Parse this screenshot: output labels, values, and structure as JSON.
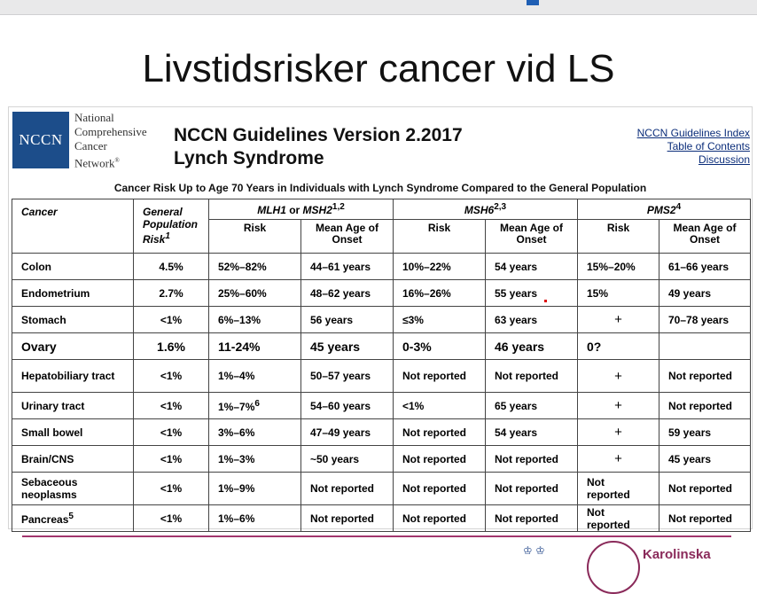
{
  "slide": {
    "title": "Livstidsrisker cancer vid LS",
    "footer_org": "Karolinska"
  },
  "header": {
    "logo_text": "NCCN",
    "org_name_lines": [
      "National",
      "Comprehensive",
      "Cancer",
      "Network"
    ],
    "org_trademark": "®",
    "guide_title_line1": "NCCN Guidelines Version 2.2017",
    "guide_title_line2": "Lynch Syndrome",
    "links": [
      "NCCN Guidelines Index",
      "Table of Contents",
      "Discussion"
    ]
  },
  "table": {
    "caption": "Cancer Risk Up to Age 70 Years in Individuals with Lynch Syndrome Compared to the General Population",
    "col_cancer": "Cancer",
    "col_general_line1": "General",
    "col_general_line2": "Population",
    "col_general_line3": "Risk",
    "col_general_sup": "1",
    "groups": [
      {
        "name_a": "MLH1",
        "joiner": " or ",
        "name_b": "MSH2",
        "sup": "1,2"
      },
      {
        "name_a": "MSH6",
        "joiner": "",
        "name_b": "",
        "sup": "2,3"
      },
      {
        "name_a": "PMS2",
        "joiner": "",
        "name_b": "",
        "sup": "4"
      }
    ],
    "sub_risk": "Risk",
    "sub_onset_line1": "Mean Age of",
    "sub_onset_line2": "Onset",
    "rows": [
      {
        "cancer": "Colon",
        "cancer_sup": "",
        "general": "4.5%",
        "mlh1_risk": "52%–82%",
        "mlh1_risk_sup": "",
        "mlh1_age": "44–61 years",
        "msh6_risk": "10%–22%",
        "msh6_age": "54 years",
        "pms2_risk": "15%–20%",
        "pms2_age": "61–66 years"
      },
      {
        "cancer": "Endometrium",
        "cancer_sup": "",
        "general": "2.7%",
        "mlh1_risk": "25%–60%",
        "mlh1_risk_sup": "",
        "mlh1_age": "48–62 years",
        "msh6_risk": "16%–26%",
        "msh6_age": "55 years",
        "pms2_risk": "15%",
        "pms2_age": "49 years"
      },
      {
        "cancer": "Stomach",
        "cancer_sup": "",
        "general": "<1%",
        "mlh1_risk": "6%–13%",
        "mlh1_risk_sup": "",
        "mlh1_age": "56 years",
        "msh6_risk": "≤3%",
        "msh6_age": "63 years",
        "pms2_risk": "+",
        "pms2_age": "70–78 years"
      },
      {
        "cancer": "Ovary",
        "cancer_sup": "",
        "general": "1.6%",
        "mlh1_risk": "11-24%",
        "mlh1_risk_sup": "",
        "mlh1_age": "45 years",
        "msh6_risk": "0-3%",
        "msh6_age": "46 years",
        "pms2_risk": "0?",
        "pms2_age": ""
      },
      {
        "cancer": "Hepatobiliary tract",
        "cancer_sup": "",
        "general": "<1%",
        "mlh1_risk": "1%–4%",
        "mlh1_risk_sup": "",
        "mlh1_age": "50–57 years",
        "msh6_risk": "Not reported",
        "msh6_age": "Not reported",
        "pms2_risk": "+",
        "pms2_age": "Not reported"
      },
      {
        "cancer": "Urinary tract",
        "cancer_sup": "",
        "general": "<1%",
        "mlh1_risk": "1%–7%",
        "mlh1_risk_sup": "6",
        "mlh1_age": "54–60 years",
        "msh6_risk": "<1%",
        "msh6_age": "65 years",
        "pms2_risk": "+",
        "pms2_age": "Not reported"
      },
      {
        "cancer": "Small bowel",
        "cancer_sup": "",
        "general": "<1%",
        "mlh1_risk": "3%–6%",
        "mlh1_risk_sup": "",
        "mlh1_age": "47–49 years",
        "msh6_risk": "Not reported",
        "msh6_age": "54 years",
        "pms2_risk": "+",
        "pms2_age": "59 years"
      },
      {
        "cancer": "Brain/CNS",
        "cancer_sup": "",
        "general": "<1%",
        "mlh1_risk": "1%–3%",
        "mlh1_risk_sup": "",
        "mlh1_age": "~50 years",
        "msh6_risk": "Not reported",
        "msh6_age": "Not reported",
        "pms2_risk": "+",
        "pms2_age": "45 years"
      },
      {
        "cancer": "Sebaceous neoplasms",
        "cancer_sup": "",
        "general": "<1%",
        "mlh1_risk": "1%–9%",
        "mlh1_risk_sup": "",
        "mlh1_age": "Not reported",
        "msh6_risk": "Not reported",
        "msh6_age": "Not reported",
        "pms2_risk": "Not reported",
        "pms2_age": "Not reported"
      },
      {
        "cancer": "Pancreas",
        "cancer_sup": "5",
        "general": "<1%",
        "mlh1_risk": "1%–6%",
        "mlh1_risk_sup": "",
        "mlh1_age": "Not reported",
        "msh6_risk": "Not reported",
        "msh6_age": "Not reported",
        "pms2_risk": "Not reported",
        "pms2_age": "Not reported"
      }
    ]
  }
}
